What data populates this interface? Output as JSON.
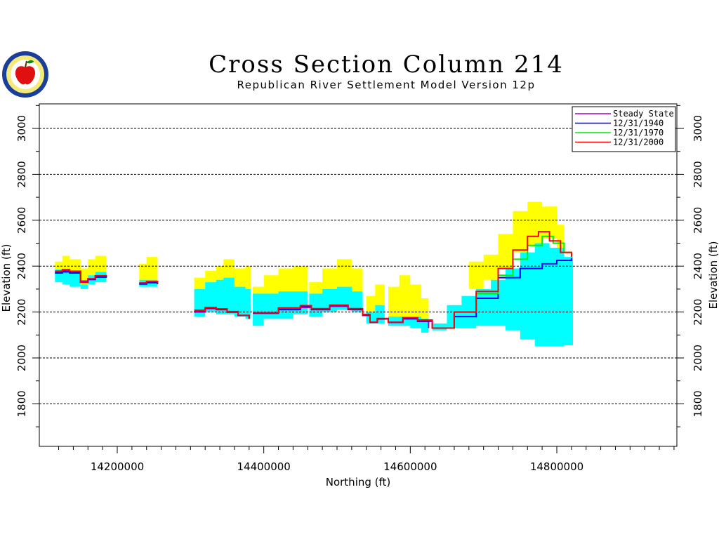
{
  "chart_data": {
    "type": "area",
    "title": "Cross Section Column 214",
    "subtitle": "Republican River Settlement Model Version 12p",
    "xlabel": "Northing  (ft)",
    "ylabel": "Elevation  (ft)",
    "xlim": [
      14100000,
      14960000
    ],
    "ylim": [
      1600,
      3100
    ],
    "x_ticks": [
      14200000,
      14400000,
      14600000,
      14800000
    ],
    "y_ticks": [
      1800,
      2000,
      2200,
      2400,
      2600,
      2800,
      3000
    ],
    "grid": "horizontal dashed",
    "legend_position": "top-right",
    "bands": [
      {
        "color": "#ffff00",
        "segments": [
          {
            "x": [
              14115000,
              14125000,
              14135000,
              14150000
            ],
            "bottom": [
              2385,
              2385,
              2380,
              2350
            ],
            "top": [
              2420,
              2445,
              2430,
              2410
            ]
          },
          {
            "x": [
              14150000,
              14160000,
              14170000,
              14185000
            ],
            "bottom": [
              2320,
              2360,
              2375,
              2380
            ],
            "top": [
              2390,
              2430,
              2445,
              2420
            ]
          },
          {
            "x": [
              14230000,
              14240000,
              14255000
            ],
            "bottom": [
              2340,
              2340,
              2340
            ],
            "top": [
              2410,
              2440,
              2410
            ]
          },
          {
            "x": [
              14305000,
              14320000,
              14335000,
              14345000,
              14360000,
              14375000,
              14382000
            ],
            "bottom": [
              2300,
              2330,
              2340,
              2350,
              2310,
              2300,
              2300
            ],
            "top": [
              2350,
              2380,
              2400,
              2430,
              2390,
              2400,
              2380
            ]
          },
          {
            "x": [
              14385000,
              14400000,
              14420000,
              14440000,
              14460000
            ],
            "bottom": [
              2280,
              2280,
              2290,
              2290,
              2270
            ],
            "top": [
              2310,
              2360,
              2390,
              2400,
              2360
            ]
          },
          {
            "x": [
              14462000,
              14480000,
              14500000,
              14520000,
              14535000
            ],
            "bottom": [
              2280,
              2300,
              2310,
              2290,
              2240
            ],
            "top": [
              2330,
              2390,
              2430,
              2390,
              2300
            ]
          },
          {
            "x": [
              14540000,
              14552000,
              14565000
            ],
            "bottom": [
              2200,
              2230,
              2200
            ],
            "top": [
              2270,
              2320,
              2250
            ]
          },
          {
            "x": [
              14570000,
              14585000,
              14600000,
              14615000,
              14625000
            ],
            "bottom": [
              2180,
              2180,
              2180,
              2170,
              2150
            ],
            "top": [
              2310,
              2360,
              2320,
              2260,
              2170
            ]
          },
          {
            "x": [
              14680000,
              14700000,
              14720000,
              14740000,
              14760000,
              14780000,
              14800000,
              14810000
            ],
            "bottom": [
              2300,
              2340,
              2390,
              2460,
              2490,
              2520,
              2480,
              2440
            ],
            "top": [
              2420,
              2450,
              2540,
              2640,
              2680,
              2660,
              2580,
              2480
            ]
          }
        ]
      },
      {
        "color": "#00ffff",
        "segments": [
          {
            "x": [
              14115000,
              14125000,
              14135000,
              14150000
            ],
            "bottom": [
              2330,
              2320,
              2310,
              2290
            ],
            "top": [
              2385,
              2385,
              2380,
              2350
            ]
          },
          {
            "x": [
              14150000,
              14160000,
              14170000,
              14185000
            ],
            "bottom": [
              2300,
              2320,
              2330,
              2340
            ],
            "top": [
              2320,
              2360,
              2375,
              2380
            ]
          },
          {
            "x": [
              14230000,
              14240000,
              14255000
            ],
            "bottom": [
              2310,
              2310,
              2310
            ],
            "top": [
              2340,
              2340,
              2340
            ]
          },
          {
            "x": [
              14305000,
              14320000,
              14335000,
              14345000,
              14360000,
              14375000,
              14382000
            ],
            "bottom": [
              2180,
              2200,
              2190,
              2190,
              2180,
              2170,
              2160
            ],
            "top": [
              2300,
              2330,
              2340,
              2350,
              2310,
              2300,
              2300
            ]
          },
          {
            "x": [
              14385000,
              14400000,
              14420000,
              14440000,
              14460000
            ],
            "bottom": [
              2140,
              2170,
              2170,
              2190,
              2180
            ],
            "top": [
              2280,
              2280,
              2290,
              2290,
              2270
            ]
          },
          {
            "x": [
              14462000,
              14480000,
              14500000,
              14520000,
              14535000
            ],
            "bottom": [
              2180,
              2200,
              2210,
              2200,
              2180
            ],
            "top": [
              2280,
              2300,
              2310,
              2290,
              2240
            ]
          },
          {
            "x": [
              14540000,
              14552000,
              14565000
            ],
            "bottom": [
              2150,
              2150,
              2150
            ],
            "top": [
              2200,
              2230,
              2200
            ]
          },
          {
            "x": [
              14570000,
              14585000,
              14600000,
              14615000,
              14625000
            ],
            "bottom": [
              2140,
              2140,
              2130,
              2110,
              2100
            ],
            "top": [
              2180,
              2180,
              2180,
              2170,
              2150
            ]
          },
          {
            "x": [
              14630000,
              14650000,
              14670000,
              14690000,
              14710000,
              14730000,
              14750000,
              14770000,
              14790000,
              14810000,
              14822000
            ],
            "bottom": [
              2120,
              2130,
              2130,
              2140,
              2140,
              2120,
              2080,
              2050,
              2050,
              2055,
              2060
            ],
            "top": [
              2150,
              2230,
              2270,
              2300,
              2340,
              2390,
              2460,
              2500,
              2480,
              2440,
              2440
            ]
          }
        ]
      }
    ],
    "series": [
      {
        "name": "Steady State",
        "color": "#aa00cc",
        "segments": [
          {
            "x": [
              14115000,
              14125000,
              14135000,
              14150000,
              14160000,
              14170000,
              14185000
            ],
            "y": [
              2375,
              2380,
              2375,
              2335,
              2345,
              2355,
              2360
            ]
          },
          {
            "x": [
              14230000,
              14240000,
              14255000
            ],
            "y": [
              2325,
              2330,
              2325
            ]
          },
          {
            "x": [
              14305000,
              14320000,
              14335000,
              14350000,
              14365000,
              14380000
            ],
            "y": [
              2200,
              2215,
              2210,
              2200,
              2185,
              2170
            ]
          },
          {
            "x": [
              14385000,
              14420000,
              14450000,
              14465000,
              14490000,
              14515000,
              14535000,
              14545000,
              14555000,
              14570000,
              14590000,
              14610000,
              14625000
            ],
            "y": [
              2195,
              2210,
              2220,
              2210,
              2225,
              2210,
              2185,
              2155,
              2170,
              2155,
              2170,
              2160,
              2130
            ]
          }
        ]
      },
      {
        "name": "12/31/1940",
        "color": "#0000ff",
        "segments": [
          {
            "x": [
              14115000,
              14125000,
              14135000,
              14150000,
              14160000,
              14170000,
              14185000
            ],
            "y": [
              2370,
              2375,
              2370,
              2330,
              2342,
              2352,
              2358
            ]
          },
          {
            "x": [
              14230000,
              14240000,
              14255000
            ],
            "y": [
              2322,
              2328,
              2322
            ]
          },
          {
            "x": [
              14305000,
              14320000,
              14335000,
              14350000,
              14365000,
              14380000
            ],
            "y": [
              2205,
              2218,
              2212,
              2200,
              2185,
              2170
            ]
          },
          {
            "x": [
              14385000,
              14420000,
              14450000,
              14465000,
              14490000,
              14515000,
              14535000,
              14545000,
              14555000,
              14570000,
              14590000,
              14610000,
              14630000,
              14660000,
              14690000,
              14720000,
              14750000,
              14780000,
              14800000,
              14820000
            ],
            "y": [
              2195,
              2212,
              2225,
              2212,
              2228,
              2212,
              2188,
              2155,
              2170,
              2155,
              2172,
              2160,
              2130,
              2180,
              2260,
              2350,
              2390,
              2410,
              2425,
              2435
            ]
          }
        ]
      },
      {
        "name": "12/31/1970",
        "color": "#00ee00",
        "segments": [
          {
            "x": [
              14630000,
              14660000,
              14690000,
              14720000,
              14740000,
              14760000,
              14780000,
              14795000,
              14810000,
              14820000
            ],
            "y": [
              2130,
              2200,
              2280,
              2360,
              2430,
              2490,
              2530,
              2500,
              2460,
              2440
            ]
          }
        ]
      },
      {
        "name": "12/31/2000",
        "color": "#ff0000",
        "segments": [
          {
            "x": [
              14115000,
              14125000,
              14135000,
              14150000,
              14160000,
              14170000,
              14185000
            ],
            "y": [
              2378,
              2385,
              2378,
              2330,
              2345,
              2358,
              2362
            ]
          },
          {
            "x": [
              14230000,
              14240000,
              14255000
            ],
            "y": [
              2327,
              2333,
              2327
            ]
          },
          {
            "x": [
              14305000,
              14320000,
              14335000,
              14350000,
              14365000,
              14380000
            ],
            "y": [
              2208,
              2220,
              2214,
              2202,
              2186,
              2170
            ]
          },
          {
            "x": [
              14385000,
              14420000,
              14450000,
              14465000,
              14490000,
              14515000,
              14535000,
              14545000,
              14555000,
              14570000,
              14590000,
              14610000,
              14630000,
              14660000,
              14690000,
              14720000,
              14740000,
              14760000,
              14775000,
              14790000,
              14805000,
              14820000
            ],
            "y": [
              2197,
              2218,
              2228,
              2215,
              2230,
              2215,
              2190,
              2155,
              2172,
              2155,
              2175,
              2165,
              2130,
              2200,
              2290,
              2390,
              2470,
              2530,
              2550,
              2510,
              2460,
              2440
            ]
          }
        ]
      }
    ]
  }
}
